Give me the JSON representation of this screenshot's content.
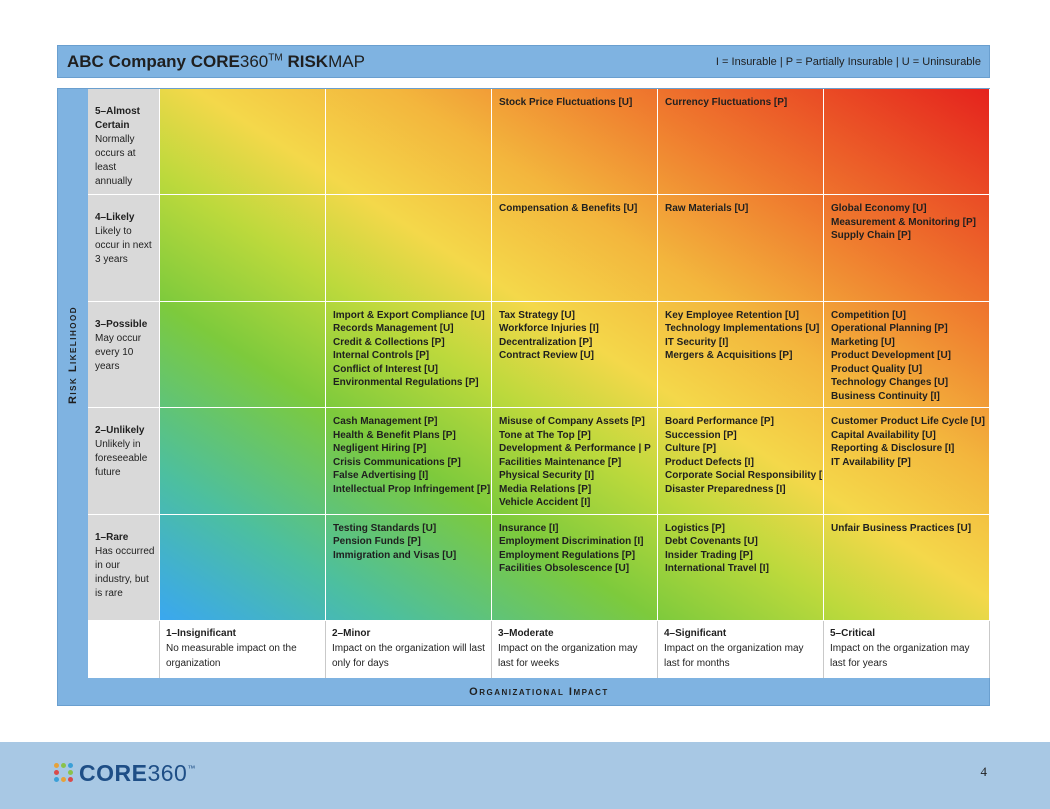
{
  "header": {
    "title_company": "ABC Company",
    "title_core": "CORE",
    "title_num": "360",
    "title_tm": "TM",
    "title_risk": "RISK",
    "title_map": "MAP",
    "legend": "I = Insurable | P = Partially Insurable | U = Uninsurable"
  },
  "chart_data": {
    "type": "heatmap",
    "title": "ABC Company CORE360TM RISKMAP",
    "ylabel": "Risk Likelihood",
    "xlabel": "Organizational Impact",
    "rows": [
      {
        "label": "5–Almost Certain",
        "desc": "Normally occurs at least annually"
      },
      {
        "label": "4–Likely",
        "desc": "Likely to occur in next 3 years"
      },
      {
        "label": "3–Possible",
        "desc": "May occur every 10 years"
      },
      {
        "label": "2–Unlikely",
        "desc": "Unlikely in foreseeable future"
      },
      {
        "label": "1–Rare",
        "desc": "Has occurred in our industry, but is rare"
      }
    ],
    "columns": [
      {
        "label": "1–Insignificant",
        "desc": "No measurable impact on the organization"
      },
      {
        "label": "2–Minor",
        "desc": "Impact on the organization will last only for days"
      },
      {
        "label": "3–Moderate",
        "desc": "Impact on the organization may last for weeks"
      },
      {
        "label": "4–Significant",
        "desc": "Impact on the organization may last for months"
      },
      {
        "label": "5–Critical",
        "desc": "Impact on the organization may last for years"
      }
    ],
    "cells": [
      [
        [],
        [],
        [
          "Stock Price Fluctuations [U]"
        ],
        [
          "Currency Fluctuations [P]"
        ],
        []
      ],
      [
        [],
        [],
        [
          "Compensation & Benefits [U]"
        ],
        [
          "Raw Materials [U]"
        ],
        [
          "Global Economy [U]",
          "Measurement & Monitoring [P]",
          "Supply Chain [P]"
        ]
      ],
      [
        [],
        [
          "Import & Export Compliance [U]",
          "Records Management [U]",
          "Credit & Collections [P]",
          "Internal Controls [P]",
          "Conflict of Interest [U]",
          "Environmental Regulations [P]"
        ],
        [
          "Tax Strategy [U]",
          "Workforce Injuries [I]",
          "Decentralization [P]",
          "Contract Review [U]"
        ],
        [
          "Key Employee Retention [U]",
          "Technology Implementations [U]",
          "IT Security [I]",
          "Mergers & Acquisitions [P]"
        ],
        [
          "Competition [U]",
          "Operational Planning [P]",
          "Marketing [U]",
          "Product Development [U]",
          "Product Quality [U]",
          "Technology Changes [U]",
          "Business Continuity [I]"
        ]
      ],
      [
        [],
        [
          "Cash Management [P]",
          "Health & Benefit Plans [P]",
          "Negligent Hiring [P]",
          "Crisis Communications [P]",
          "False Advertising [I]",
          "Intellectual Prop Infringement [P]"
        ],
        [
          "Misuse of Company Assets [P]",
          "Tone at The Top [P]",
          "Development & Performance | P",
          "Facilities Maintenance [P]",
          "Physical Security [I]",
          "Media Relations [P]",
          "Vehicle Accident [I]"
        ],
        [
          "Board Performance [P]",
          "Succession [P]",
          "Culture [P]",
          "Product Defects [I]",
          "Corporate Social Responsibility [P]",
          "Disaster Preparedness [I]"
        ],
        [
          "Customer Product Life Cycle [U]",
          "Capital Availability [U]",
          "Reporting & Disclosure [I]",
          "IT Availability [P]"
        ]
      ],
      [
        [],
        [
          "Testing Standards [U]",
          "Pension Funds [P]",
          "Immigration and Visas [U]"
        ],
        [
          "Insurance [I]",
          "Employment Discrimination [I]",
          "Employment Regulations [P]",
          "Facilities Obsolescence [U]"
        ],
        [
          "Logistics [P]",
          "Debt Covenants [U]",
          "Insider Trading [P]",
          "International Travel [I]"
        ],
        [
          "Unfair Business Practices [U]"
        ]
      ]
    ],
    "gradient": [
      "#3aa7f0",
      "#7dca3c",
      "#f4d84a",
      "#ef7a2e",
      "#e5221d"
    ]
  },
  "footer": {
    "logo_core": "CORE",
    "logo_num": "360",
    "logo_tm": "™",
    "page_number": "4"
  },
  "colors": {
    "header_bar": "#7fb3e1",
    "footer_bar": "#a8c8e4",
    "row_header_bg": "#d9d9d9"
  }
}
